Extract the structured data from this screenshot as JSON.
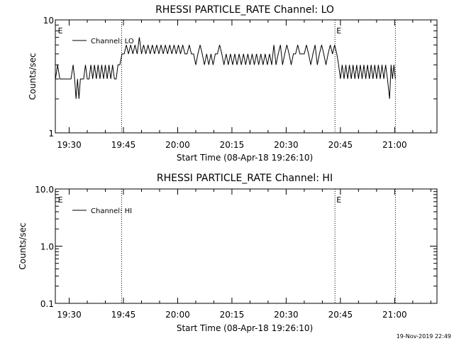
{
  "footer_timestamp": "19-Nov-2019 22:49",
  "chart_data": [
    {
      "type": "line",
      "title": "RHESSI PARTICLE_RATE Channel: LO",
      "xlabel": "Start Time (08-Apr-18 19:26:10)",
      "ylabel": "Counts/sec",
      "y_scale": "log",
      "ylim": [
        1,
        10
      ],
      "y_ticks": [
        1,
        10
      ],
      "y_tick_labels": [
        "1",
        "10"
      ],
      "x_tick_minutes": [
        30,
        45,
        60,
        75,
        90,
        105,
        120
      ],
      "x_tick_labels": [
        "19:30",
        "19:45",
        "20:00",
        "20:15",
        "20:30",
        "20:45",
        "21:00"
      ],
      "x_range_minutes": [
        26.17,
        131.7
      ],
      "legend": {
        "label": "Channel: LO",
        "placement": "top-left"
      },
      "event_lines_minutes": [
        44.5,
        103.5,
        120.2
      ],
      "event_markers": [
        {
          "label": "E",
          "x_minutes": 26.5
        },
        {
          "label": "E",
          "x_minutes": 103.5
        }
      ],
      "series": [
        {
          "name": "Channel: LO",
          "points": [
            [
              26.2,
              3
            ],
            [
              26.8,
              4
            ],
            [
              27.4,
              3
            ],
            [
              30.5,
              3
            ],
            [
              31.1,
              4
            ],
            [
              31.5,
              3
            ],
            [
              31.9,
              2
            ],
            [
              32.3,
              3
            ],
            [
              32.7,
              2
            ],
            [
              33.1,
              3
            ],
            [
              33.5,
              3
            ],
            [
              34.0,
              3
            ],
            [
              34.5,
              4
            ],
            [
              35.0,
              3
            ],
            [
              35.5,
              3
            ],
            [
              36.0,
              4
            ],
            [
              36.5,
              3
            ],
            [
              37.0,
              4
            ],
            [
              37.5,
              3
            ],
            [
              38.0,
              4
            ],
            [
              38.5,
              3
            ],
            [
              39.0,
              4
            ],
            [
              39.5,
              3
            ],
            [
              40.0,
              4
            ],
            [
              40.5,
              3
            ],
            [
              41.0,
              4
            ],
            [
              41.5,
              3
            ],
            [
              42.0,
              4
            ],
            [
              42.5,
              3
            ],
            [
              43.0,
              3
            ],
            [
              43.5,
              4
            ],
            [
              44.0,
              4
            ],
            [
              44.6,
              5
            ],
            [
              45.2,
              5
            ],
            [
              45.8,
              6
            ],
            [
              46.4,
              5
            ],
            [
              47.0,
              6
            ],
            [
              47.6,
              5
            ],
            [
              48.2,
              6
            ],
            [
              48.8,
              5
            ],
            [
              49.4,
              7
            ],
            [
              50.0,
              5
            ],
            [
              50.6,
              6
            ],
            [
              51.2,
              5
            ],
            [
              51.8,
              6
            ],
            [
              52.4,
              5
            ],
            [
              53.0,
              6
            ],
            [
              53.6,
              5
            ],
            [
              54.2,
              6
            ],
            [
              54.8,
              5
            ],
            [
              55.4,
              6
            ],
            [
              56.0,
              5
            ],
            [
              56.6,
              6
            ],
            [
              57.2,
              5
            ],
            [
              57.8,
              6
            ],
            [
              58.4,
              5
            ],
            [
              59.0,
              6
            ],
            [
              59.6,
              5
            ],
            [
              60.2,
              6
            ],
            [
              60.8,
              5
            ],
            [
              61.4,
              6
            ],
            [
              62.0,
              5
            ],
            [
              62.6,
              5
            ],
            [
              63.2,
              6
            ],
            [
              63.8,
              5
            ],
            [
              64.4,
              5
            ],
            [
              65.0,
              4
            ],
            [
              65.6,
              5
            ],
            [
              66.2,
              6
            ],
            [
              66.8,
              5
            ],
            [
              67.4,
              4
            ],
            [
              68.0,
              5
            ],
            [
              68.6,
              4
            ],
            [
              69.2,
              5
            ],
            [
              69.8,
              4
            ],
            [
              70.4,
              5
            ],
            [
              71.0,
              5
            ],
            [
              71.6,
              6
            ],
            [
              72.2,
              5
            ],
            [
              72.8,
              4
            ],
            [
              73.4,
              5
            ],
            [
              74.0,
              4
            ],
            [
              74.6,
              5
            ],
            [
              75.2,
              4
            ],
            [
              75.8,
              5
            ],
            [
              76.4,
              4
            ],
            [
              77.0,
              5
            ],
            [
              77.6,
              4
            ],
            [
              78.2,
              5
            ],
            [
              78.8,
              4
            ],
            [
              79.4,
              5
            ],
            [
              80.0,
              4
            ],
            [
              80.6,
              5
            ],
            [
              81.2,
              4
            ],
            [
              81.8,
              5
            ],
            [
              82.4,
              4
            ],
            [
              83.0,
              5
            ],
            [
              83.6,
              4
            ],
            [
              84.2,
              5
            ],
            [
              84.8,
              4
            ],
            [
              85.4,
              5
            ],
            [
              86.0,
              4
            ],
            [
              86.6,
              6
            ],
            [
              87.2,
              4
            ],
            [
              87.8,
              5
            ],
            [
              88.4,
              6
            ],
            [
              89.0,
              4
            ],
            [
              89.6,
              5
            ],
            [
              90.2,
              6
            ],
            [
              90.8,
              5
            ],
            [
              91.4,
              4
            ],
            [
              92.0,
              5
            ],
            [
              92.6,
              5
            ],
            [
              93.2,
              6
            ],
            [
              93.8,
              5
            ],
            [
              94.4,
              5
            ],
            [
              95.0,
              5
            ],
            [
              95.6,
              6
            ],
            [
              96.2,
              5
            ],
            [
              96.8,
              4
            ],
            [
              97.4,
              5
            ],
            [
              98.0,
              6
            ],
            [
              98.6,
              4
            ],
            [
              99.2,
              5
            ],
            [
              99.8,
              6
            ],
            [
              100.4,
              5
            ],
            [
              101.0,
              4
            ],
            [
              101.6,
              5
            ],
            [
              102.2,
              6
            ],
            [
              102.8,
              5
            ],
            [
              103.4,
              6
            ],
            [
              104.0,
              5
            ],
            [
              104.5,
              4
            ],
            [
              105.0,
              3
            ],
            [
              105.5,
              4
            ],
            [
              106.0,
              3
            ],
            [
              106.5,
              4
            ],
            [
              107.0,
              3
            ],
            [
              107.5,
              4
            ],
            [
              108.0,
              3
            ],
            [
              108.5,
              4
            ],
            [
              109.0,
              3
            ],
            [
              109.5,
              4
            ],
            [
              110.0,
              3
            ],
            [
              110.5,
              4
            ],
            [
              111.0,
              3
            ],
            [
              111.5,
              4
            ],
            [
              112.0,
              3
            ],
            [
              112.5,
              4
            ],
            [
              113.0,
              3
            ],
            [
              113.5,
              4
            ],
            [
              114.0,
              3
            ],
            [
              114.5,
              4
            ],
            [
              115.0,
              3
            ],
            [
              115.5,
              4
            ],
            [
              116.0,
              3
            ],
            [
              116.5,
              4
            ],
            [
              117.0,
              3
            ],
            [
              117.5,
              4
            ],
            [
              118.0,
              3
            ],
            [
              118.6,
              2
            ],
            [
              119.0,
              4
            ],
            [
              119.4,
              3
            ],
            [
              119.8,
              4
            ],
            [
              120.2,
              3
            ]
          ]
        }
      ]
    },
    {
      "type": "line",
      "title": "RHESSI PARTICLE_RATE Channel: HI",
      "xlabel": "Start Time (08-Apr-18 19:26:10)",
      "ylabel": "Counts/sec",
      "y_scale": "log",
      "ylim": [
        0.1,
        10
      ],
      "y_ticks": [
        0.1,
        1,
        10
      ],
      "y_tick_labels": [
        "0.1",
        "1.0",
        "10.0"
      ],
      "x_tick_minutes": [
        30,
        45,
        60,
        75,
        90,
        105,
        120
      ],
      "x_tick_labels": [
        "19:30",
        "19:45",
        "20:00",
        "20:15",
        "20:30",
        "20:45",
        "21:00"
      ],
      "x_range_minutes": [
        26.17,
        131.7
      ],
      "legend": {
        "label": "Channel: HI",
        "placement": "top-left"
      },
      "event_lines_minutes": [
        44.5,
        103.5,
        120.2
      ],
      "event_markers": [
        {
          "label": "E",
          "x_minutes": 26.5
        },
        {
          "label": "E",
          "x_minutes": 103.5
        }
      ],
      "series": [
        {
          "name": "Channel: HI",
          "points": []
        }
      ]
    }
  ]
}
